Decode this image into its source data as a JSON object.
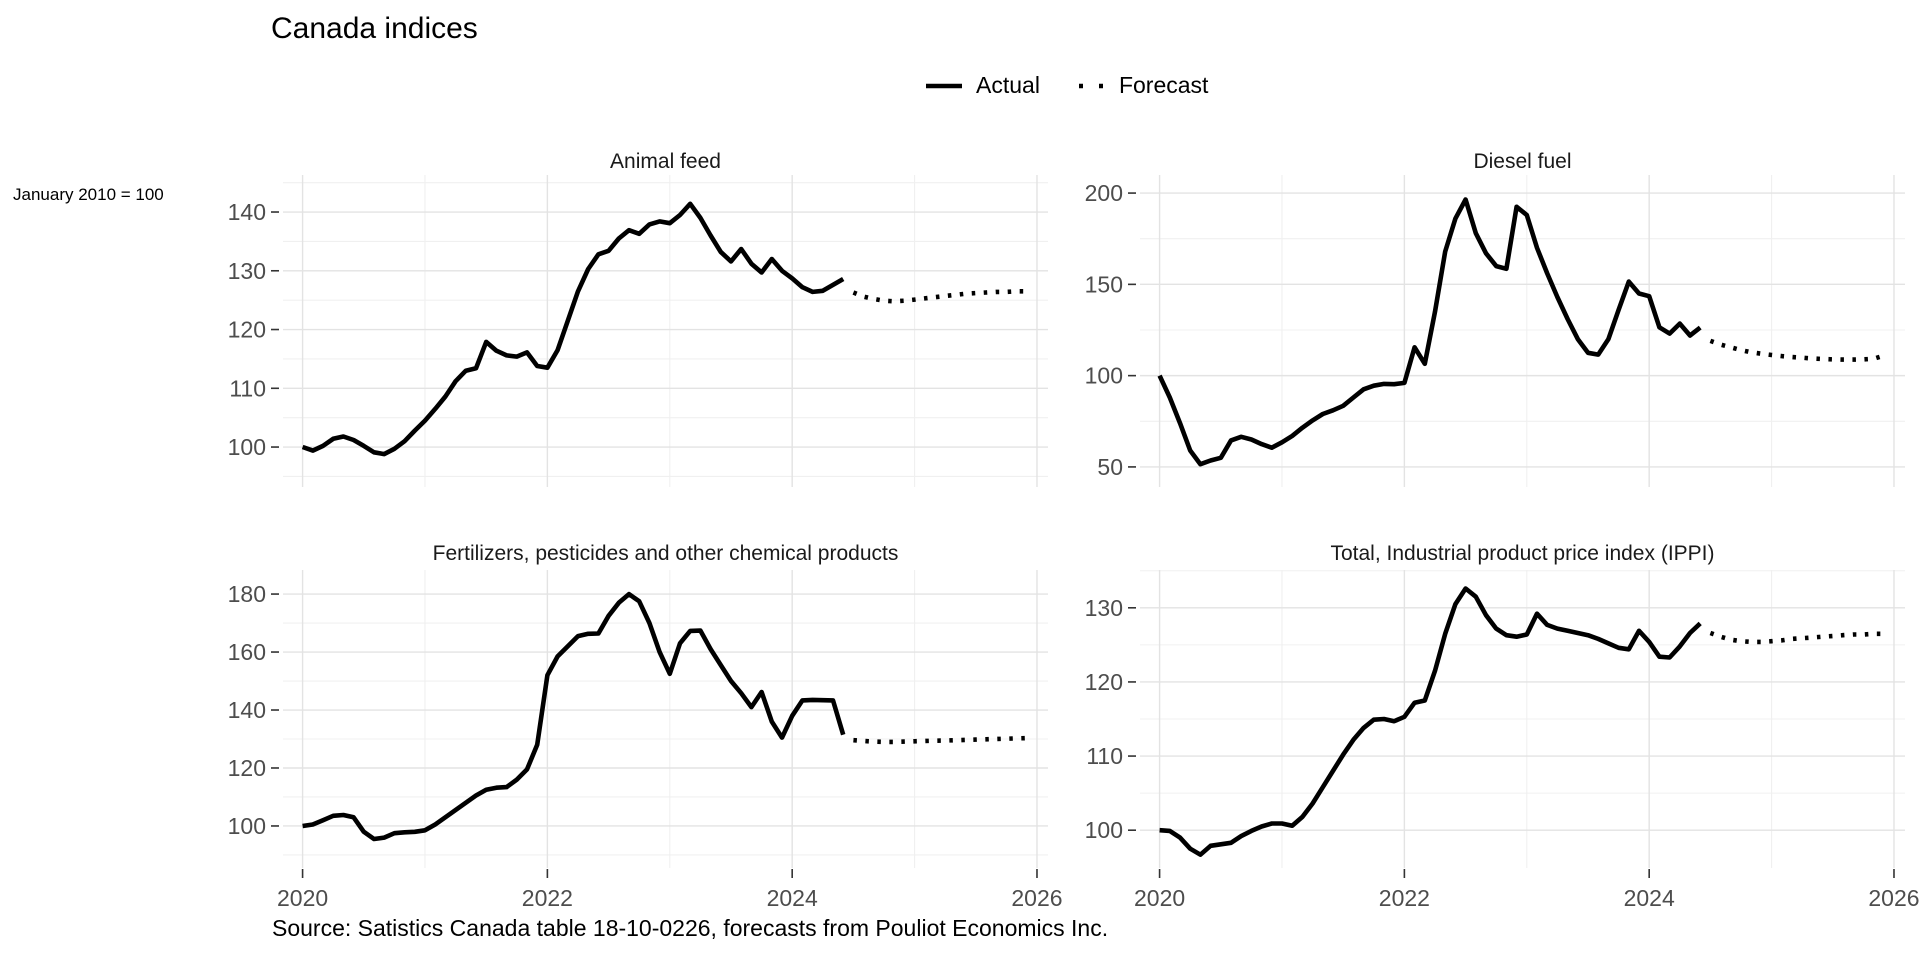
{
  "header": {
    "title": "Canada indices",
    "note": "January 2010 = 100",
    "source": "Source: Satistics Canada table 18-10-0226, forecasts from Pouliot Economics Inc."
  },
  "legend": {
    "actual_label": "Actual",
    "forecast_label": "Forecast"
  },
  "colors": {
    "line": "#000000",
    "tick_label": "#4d4d4d",
    "grid_major": "#e3e3e3",
    "grid_minor": "#f0f0f0",
    "tick_mark": "#333333",
    "background": "#ffffff"
  },
  "chart_data": [
    {
      "type": "line",
      "title": "Animal feed",
      "xlabel": "",
      "ylabel": "",
      "grid": true,
      "legend_position": "top",
      "xlim": [
        2019.84,
        2026.09
      ],
      "ylim": [
        93.2,
        146.3
      ],
      "yticks": [
        100,
        110,
        120,
        130,
        140
      ],
      "yminor": [
        95,
        105,
        115,
        125,
        135,
        145
      ],
      "xticks": [
        2020,
        2022,
        2024,
        2026
      ],
      "xtick_labels": [
        "2020",
        "2022",
        "2024",
        "2026"
      ],
      "xminor": [
        2021,
        2023,
        2025
      ],
      "series": [
        {
          "name": "Actual",
          "style": "solid",
          "x_start": 2020.0,
          "x_step": 0.0833333,
          "values": [
            100.0,
            99.4,
            100.2,
            101.4,
            101.8,
            101.2,
            100.2,
            99.1,
            98.8,
            99.7,
            101.0,
            102.8,
            104.5,
            106.5,
            108.6,
            111.2,
            113.0,
            113.4,
            117.9,
            116.4,
            115.6,
            115.4,
            116.1,
            113.8,
            113.5,
            116.5,
            121.5,
            126.5,
            130.3,
            132.8,
            133.4,
            135.5,
            136.9,
            136.3,
            137.9,
            138.4,
            138.1,
            139.5,
            141.4,
            139.0,
            136.0,
            133.2,
            131.6,
            133.7,
            131.2,
            129.7,
            132.0,
            130.0,
            128.7,
            127.2,
            126.4,
            126.6,
            127.6,
            128.6
          ]
        },
        {
          "name": "Forecast",
          "style": "dotted",
          "x_start": 2024.5,
          "x_step": 0.0833333,
          "values": [
            126.3,
            125.6,
            125.2,
            124.9,
            124.8,
            124.9,
            125.1,
            125.3,
            125.5,
            125.7,
            125.9,
            126.1,
            126.2,
            126.3,
            126.4,
            126.4,
            126.5,
            126.5
          ]
        }
      ]
    },
    {
      "type": "line",
      "title": "Diesel fuel",
      "xlabel": "",
      "ylabel": "",
      "grid": true,
      "legend_position": "top",
      "xlim": [
        2019.84,
        2026.09
      ],
      "ylim": [
        39,
        209.9
      ],
      "yticks": [
        50,
        100,
        150,
        200
      ],
      "yminor": [
        75,
        125,
        175
      ],
      "xticks": [
        2020,
        2022,
        2024,
        2026
      ],
      "xtick_labels": [
        "2020",
        "2022",
        "2024",
        "2026"
      ],
      "xminor": [
        2021,
        2023,
        2025
      ],
      "series": [
        {
          "name": "Actual",
          "style": "solid",
          "x_start": 2020.0,
          "x_step": 0.0833333,
          "values": [
            100,
            88,
            74,
            59,
            51.5,
            53.5,
            55,
            64.5,
            66.5,
            65,
            62.5,
            60.5,
            63.5,
            67,
            71.5,
            75.5,
            79,
            81,
            83.5,
            88,
            92.5,
            94.5,
            95.5,
            95.3,
            96,
            115.5,
            106.5,
            135,
            168,
            186,
            196.5,
            178,
            167,
            160,
            158.5,
            192.5,
            188,
            170,
            156,
            143,
            131,
            120,
            112.5,
            111.5,
            120,
            136,
            151.5,
            145,
            143.5,
            126.5,
            123,
            128.5,
            122,
            126.3
          ]
        },
        {
          "name": "Forecast",
          "style": "dotted",
          "x_start": 2024.5,
          "x_step": 0.0833333,
          "values": [
            119,
            117,
            115.5,
            114,
            112.8,
            112,
            111.3,
            110.7,
            110.2,
            109.8,
            109.4,
            109.1,
            108.9,
            108.8,
            108.8,
            108.9,
            109.2,
            111
          ]
        }
      ]
    },
    {
      "type": "line",
      "title": "Fertilizers, pesticides and other chemical products",
      "xlabel": "",
      "ylabel": "",
      "grid": true,
      "legend_position": "top",
      "xlim": [
        2019.84,
        2026.09
      ],
      "ylim": [
        85.5,
        188.3
      ],
      "yticks": [
        100,
        120,
        140,
        160,
        180
      ],
      "yminor": [
        90,
        110,
        130,
        150,
        170
      ],
      "xticks": [
        2020,
        2022,
        2024,
        2026
      ],
      "xtick_labels": [
        "2020",
        "2022",
        "2024",
        "2026"
      ],
      "xminor": [
        2021,
        2023,
        2025
      ],
      "series": [
        {
          "name": "Actual",
          "style": "solid",
          "x_start": 2020.0,
          "x_step": 0.0833333,
          "values": [
            100,
            100.5,
            102,
            103.5,
            103.8,
            103,
            98,
            95.5,
            96,
            97.5,
            97.8,
            98,
            98.5,
            100.5,
            103,
            105.5,
            108,
            110.5,
            112.5,
            113.2,
            113.4,
            116,
            119.5,
            128,
            152,
            158.5,
            162,
            165.5,
            166.3,
            166.4,
            172.5,
            177,
            180,
            177.5,
            170,
            160,
            152.5,
            163,
            167.3,
            167.4,
            161,
            155.5,
            150,
            145.8,
            141,
            146.2,
            136,
            130.5,
            138,
            143.3,
            143.5,
            143.4,
            143.3,
            131.5
          ]
        },
        {
          "name": "Forecast",
          "style": "dotted",
          "x_start": 2024.5,
          "x_step": 0.0833333,
          "values": [
            129.6,
            129.3,
            129.1,
            129.0,
            129.0,
            129.1,
            129.2,
            129.3,
            129.4,
            129.5,
            129.6,
            129.7,
            129.8,
            129.9,
            130.0,
            130.1,
            130.2,
            130.3
          ]
        }
      ]
    },
    {
      "type": "line",
      "title": "Total, Industrial product price index (IPPI)",
      "xlabel": "",
      "ylabel": "",
      "grid": true,
      "legend_position": "top",
      "xlim": [
        2019.84,
        2026.09
      ],
      "ylim": [
        94.9,
        135.1
      ],
      "yticks": [
        100,
        110,
        120,
        130
      ],
      "yminor": [
        105,
        115,
        125,
        135
      ],
      "xticks": [
        2020,
        2022,
        2024,
        2026
      ],
      "xtick_labels": [
        "2020",
        "2022",
        "2024",
        "2026"
      ],
      "xminor": [
        2021,
        2023,
        2025
      ],
      "series": [
        {
          "name": "Actual",
          "style": "solid",
          "x_start": 2020.0,
          "x_step": 0.0833333,
          "values": [
            100.0,
            99.9,
            99.0,
            97.5,
            96.7,
            97.9,
            98.1,
            98.3,
            99.2,
            99.9,
            100.5,
            100.9,
            100.9,
            100.6,
            101.8,
            103.6,
            105.8,
            108.0,
            110.2,
            112.2,
            113.8,
            114.9,
            115.0,
            114.7,
            115.3,
            117.2,
            117.5,
            121.5,
            126.5,
            130.5,
            132.6,
            131.5,
            129.0,
            127.2,
            126.3,
            126.1,
            126.4,
            129.2,
            127.7,
            127.2,
            126.9,
            126.6,
            126.3,
            125.8,
            125.2,
            124.6,
            124.4,
            126.9,
            125.4,
            123.4,
            123.3,
            124.8,
            126.6,
            127.9
          ]
        },
        {
          "name": "Forecast",
          "style": "dotted",
          "x_start": 2024.5,
          "x_step": 0.0833333,
          "values": [
            126.6,
            126.1,
            125.7,
            125.5,
            125.4,
            125.4,
            125.5,
            125.6,
            125.8,
            125.9,
            126.0,
            126.1,
            126.2,
            126.3,
            126.4,
            126.4,
            126.5,
            126.5
          ]
        }
      ]
    }
  ]
}
